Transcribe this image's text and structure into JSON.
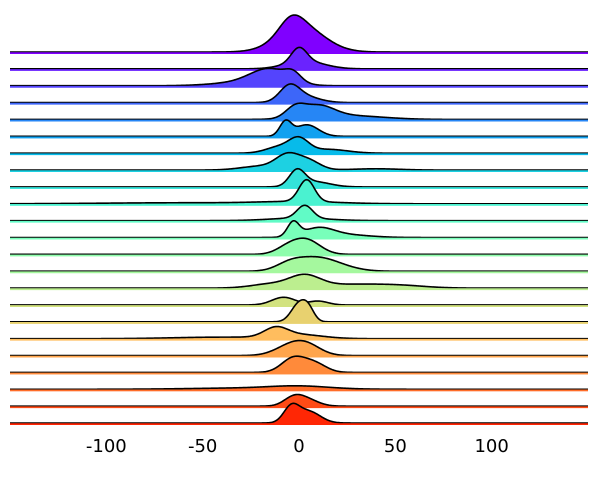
{
  "chart_data": {
    "type": "ridgeline",
    "xlim": [
      -150,
      150
    ],
    "x_ticks": [
      {
        "value": -100,
        "label": "-100"
      },
      {
        "value": -50,
        "label": "-50"
      },
      {
        "value": 0,
        "label": "0"
      },
      {
        "value": 50,
        "label": "50"
      },
      {
        "value": 100,
        "label": "100"
      }
    ],
    "colormap": "rainbow",
    "colors": [
      "#8000ff",
      "#6a23fe",
      "#5444fd",
      "#3d66f9",
      "#2686f5",
      "#11a1f0",
      "#07bbea",
      "#1dd1e2",
      "#33e3da",
      "#4af2d0",
      "#61fbc6",
      "#78ffba",
      "#8efdac",
      "#a5f89e",
      "#bcee8f",
      "#d2e27f",
      "#e8d16f",
      "#ffbd5e",
      "#ffa54c",
      "#ff8a3a",
      "#ff6d29",
      "#ff4b16",
      "#ff2705"
    ],
    "series": [
      {
        "components": [
          [
            1,
            12,
            1.0
          ],
          [
            -4,
            6,
            0.5
          ]
        ]
      },
      {
        "components": [
          [
            0,
            4,
            0.55
          ],
          [
            3,
            10,
            0.3
          ]
        ]
      },
      {
        "components": [
          [
            -15,
            10,
            0.6
          ],
          [
            -3,
            4,
            0.3
          ],
          [
            -30,
            15,
            0.12
          ]
        ]
      },
      {
        "components": [
          [
            -5,
            5,
            0.55
          ],
          [
            2,
            8,
            0.25
          ]
        ]
      },
      {
        "components": [
          [
            10,
            8,
            0.45
          ],
          [
            -2,
            5,
            0.4
          ],
          [
            25,
            18,
            0.15
          ]
        ]
      },
      {
        "components": [
          [
            -7,
            3,
            0.55
          ],
          [
            4,
            6,
            0.45
          ]
        ]
      },
      {
        "components": [
          [
            0,
            5,
            0.5
          ],
          [
            -10,
            7,
            0.25
          ],
          [
            15,
            10,
            0.15
          ]
        ]
      },
      {
        "components": [
          [
            -6,
            6,
            0.55
          ],
          [
            5,
            6,
            0.35
          ],
          [
            -20,
            10,
            0.15
          ],
          [
            40,
            12,
            0.05
          ]
        ]
      },
      {
        "components": [
          [
            -1,
            4,
            0.6
          ],
          [
            8,
            8,
            0.2
          ]
        ]
      },
      {
        "components": [
          [
            4,
            4,
            0.85
          ],
          [
            0,
            20,
            0.08
          ],
          [
            -60,
            40,
            0.04
          ]
        ]
      },
      {
        "components": [
          [
            3,
            4,
            0.5
          ],
          [
            0,
            15,
            0.1
          ]
        ]
      },
      {
        "components": [
          [
            -3,
            3,
            0.55
          ],
          [
            10,
            8,
            0.35
          ],
          [
            25,
            12,
            0.1
          ]
        ]
      },
      {
        "components": [
          [
            4,
            7,
            0.55
          ],
          [
            -6,
            6,
            0.25
          ]
        ]
      },
      {
        "components": [
          [
            8,
            10,
            0.45
          ],
          [
            -5,
            7,
            0.25
          ],
          [
            20,
            10,
            0.15
          ]
        ]
      },
      {
        "components": [
          [
            3,
            8,
            0.45
          ],
          [
            -15,
            10,
            0.15
          ],
          [
            30,
            20,
            0.15
          ],
          [
            55,
            12,
            0.05
          ]
        ]
      },
      {
        "components": [
          [
            -8,
            6,
            0.3
          ],
          [
            10,
            5,
            0.15
          ]
        ]
      },
      {
        "components": [
          [
            0,
            4,
            0.7
          ],
          [
            5,
            3,
            0.4
          ]
        ]
      },
      {
        "components": [
          [
            -12,
            6,
            0.35
          ],
          [
            0,
            12,
            0.15
          ],
          [
            -40,
            25,
            0.06
          ]
        ]
      },
      {
        "components": [
          [
            -4,
            8,
            0.4
          ],
          [
            5,
            7,
            0.3
          ]
        ]
      },
      {
        "components": [
          [
            -3,
            6,
            0.55
          ],
          [
            8,
            6,
            0.35
          ]
        ]
      },
      {
        "components": [
          [
            0,
            15,
            0.1
          ],
          [
            -25,
            30,
            0.05
          ]
        ]
      },
      {
        "components": [
          [
            -3,
            5,
            0.3
          ],
          [
            4,
            6,
            0.25
          ]
        ]
      },
      {
        "components": [
          [
            -4,
            4,
            0.6
          ],
          [
            5,
            6,
            0.45
          ]
        ]
      }
    ]
  }
}
